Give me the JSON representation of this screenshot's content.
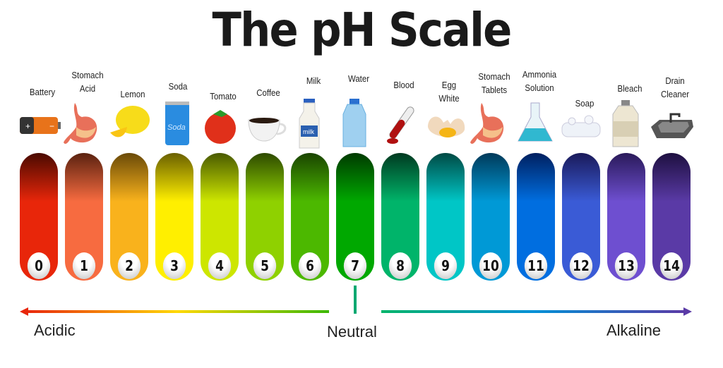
{
  "title": "The pH Scale",
  "items": [
    {
      "ph": "0",
      "label": [
        "Battery"
      ],
      "icon": "battery-icon",
      "top": "#4a0a00",
      "color": "#e8260a"
    },
    {
      "ph": "1",
      "label": [
        "Stomach",
        "Acid"
      ],
      "icon": "stomach-icon",
      "top": "#5a2210",
      "color": "#f76b40"
    },
    {
      "ph": "2",
      "label": [
        "Lemon"
      ],
      "icon": "lemon-icon",
      "top": "#6a4a08",
      "color": "#f9b21c"
    },
    {
      "ph": "3",
      "label": [
        "Soda"
      ],
      "icon": "soda-can-icon",
      "top": "#6a6000",
      "color": "#ffef00"
    },
    {
      "ph": "4",
      "label": [
        "Tomato"
      ],
      "icon": "tomato-icon",
      "top": "#4a5a00",
      "color": "#cde600"
    },
    {
      "ph": "5",
      "label": [
        "Coffee"
      ],
      "icon": "coffee-cup-icon",
      "top": "#2e4a00",
      "color": "#8fd100"
    },
    {
      "ph": "6",
      "label": [
        "Milk"
      ],
      "icon": "milk-bottle-icon",
      "top": "#1a4400",
      "color": "#4cb800"
    },
    {
      "ph": "7",
      "label": [
        "Water"
      ],
      "icon": "water-bottle-icon",
      "top": "#003a00",
      "color": "#00a800"
    },
    {
      "ph": "8",
      "label": [
        "Blood"
      ],
      "icon": "blood-tube-icon",
      "top": "#003a20",
      "color": "#00b46a"
    },
    {
      "ph": "9",
      "label": [
        "Egg",
        "White"
      ],
      "icon": "egg-icon",
      "top": "#004a44",
      "color": "#00c6c6"
    },
    {
      "ph": "10",
      "label": [
        "Stomach",
        "Tablets"
      ],
      "icon": "stomach-icon",
      "top": "#003a5a",
      "color": "#0099d6"
    },
    {
      "ph": "11",
      "label": [
        "Ammonia",
        "Solution"
      ],
      "icon": "flask-icon",
      "top": "#002060",
      "color": "#006ee0"
    },
    {
      "ph": "12",
      "label": [
        "Soap"
      ],
      "icon": "soap-icon",
      "top": "#1a1a5a",
      "color": "#3a5bd6"
    },
    {
      "ph": "13",
      "label": [
        "Bleach"
      ],
      "icon": "bleach-jug-icon",
      "top": "#2a1a5a",
      "color": "#6e4fd0"
    },
    {
      "ph": "14",
      "label": [
        "Drain",
        "Cleaner"
      ],
      "icon": "sink-icon",
      "top": "#1e1040",
      "color": "#5a3aa6"
    }
  ],
  "scale": {
    "acidic": "Acidic",
    "neutral": "Neutral",
    "alkaline": "Alkaline"
  }
}
